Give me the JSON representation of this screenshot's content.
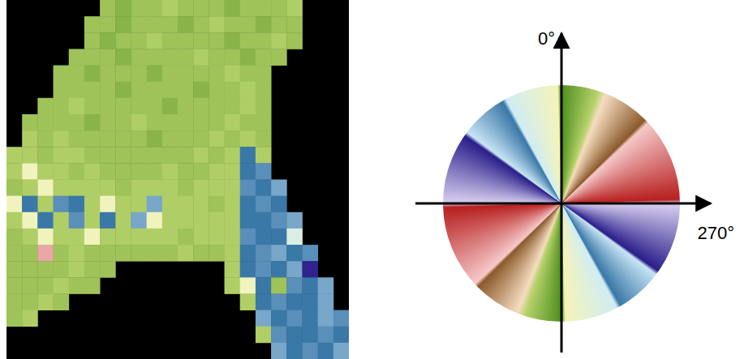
{
  "chart_data": {
    "type": "heatmap",
    "tick_labels": false,
    "cells": [
      [
        null,
        null,
        null,
        null,
        null,
        null,
        166,
        170,
        166,
        166,
        163,
        166,
        166,
        166,
        170,
        166,
        166,
        166,
        163,
        null,
        null,
        null
      ],
      [
        null,
        null,
        null,
        null,
        null,
        166,
        166,
        170,
        166,
        166,
        166,
        170,
        166,
        163,
        166,
        166,
        170,
        166,
        166,
        null,
        null,
        null
      ],
      [
        null,
        null,
        null,
        null,
        null,
        166,
        170,
        166,
        166,
        163,
        166,
        166,
        166,
        166,
        170,
        166,
        166,
        163,
        166,
        null,
        null,
        null
      ],
      [
        null,
        null,
        null,
        null,
        166,
        166,
        166,
        170,
        166,
        166,
        166,
        166,
        163,
        166,
        166,
        170,
        166,
        166,
        null,
        null,
        null,
        null
      ],
      [
        null,
        null,
        null,
        166,
        166,
        170,
        166,
        166,
        166,
        170,
        166,
        166,
        166,
        166,
        163,
        166,
        166,
        null,
        null,
        null,
        null,
        null
      ],
      [
        null,
        null,
        null,
        166,
        166,
        166,
        166,
        170,
        166,
        166,
        166,
        166,
        170,
        166,
        166,
        163,
        166,
        null,
        null,
        null,
        null,
        null
      ],
      [
        null,
        null,
        166,
        166,
        163,
        166,
        166,
        166,
        166,
        166,
        170,
        166,
        166,
        166,
        166,
        163,
        166,
        null,
        null,
        null,
        null,
        null
      ],
      [
        null,
        166,
        166,
        166,
        166,
        170,
        166,
        166,
        163,
        166,
        166,
        166,
        166,
        166,
        163,
        166,
        166,
        null,
        null,
        null,
        null,
        null
      ],
      [
        null,
        163,
        166,
        163,
        166,
        166,
        166,
        166,
        166,
        170,
        166,
        166,
        166,
        163,
        166,
        163,
        166,
        null,
        null,
        null,
        null,
        null
      ],
      [
        163,
        163,
        166,
        163,
        163,
        166,
        166,
        166,
        166,
        166,
        166,
        166,
        163,
        166,
        163,
        30,
        163,
        null,
        null,
        null,
        null,
        null
      ],
      [
        163,
        4,
        163,
        163,
        166,
        163,
        166,
        166,
        166,
        166,
        163,
        166,
        166,
        163,
        163,
        30,
        35,
        null,
        null,
        null,
        null,
        null
      ],
      [
        166,
        163,
        4,
        163,
        163,
        163,
        163,
        166,
        163,
        163,
        163,
        166,
        163,
        163,
        163,
        35,
        30,
        40,
        null,
        null,
        null,
        null
      ],
      [
        4,
        30,
        163,
        35,
        30,
        163,
        4,
        163,
        163,
        40,
        163,
        163,
        163,
        166,
        163,
        30,
        35,
        30,
        null,
        null,
        null,
        null
      ],
      [
        163,
        4,
        30,
        163,
        35,
        163,
        30,
        163,
        40,
        4,
        163,
        163,
        163,
        163,
        163,
        30,
        30,
        35,
        40,
        null,
        null,
        null
      ],
      [
        166,
        163,
        4,
        163,
        163,
        4,
        163,
        163,
        163,
        163,
        163,
        166,
        163,
        163,
        163,
        35,
        30,
        30,
        20,
        null,
        null,
        null
      ],
      [
        166,
        166,
        125,
        166,
        163,
        166,
        166,
        166,
        166,
        166,
        166,
        163,
        166,
        166,
        163,
        30,
        35,
        40,
        30,
        35,
        null,
        null
      ],
      [
        166,
        166,
        166,
        166,
        163,
        166,
        166,
        null,
        null,
        null,
        null,
        null,
        null,
        null,
        163,
        30,
        35,
        30,
        40,
        56,
        null,
        null
      ],
      [
        166,
        166,
        166,
        163,
        166,
        166,
        null,
        null,
        null,
        null,
        null,
        null,
        null,
        null,
        163,
        4,
        30,
        166,
        35,
        30,
        40,
        null
      ],
      [
        166,
        166,
        163,
        166,
        null,
        null,
        null,
        null,
        null,
        null,
        null,
        null,
        null,
        null,
        null,
        163,
        30,
        35,
        30,
        30,
        40,
        null
      ],
      [
        166,
        163,
        null,
        null,
        null,
        null,
        null,
        null,
        null,
        null,
        null,
        null,
        null,
        null,
        null,
        null,
        40,
        30,
        35,
        30,
        40,
        35
      ],
      [
        null,
        null,
        null,
        null,
        null,
        null,
        null,
        null,
        null,
        null,
        null,
        null,
        null,
        null,
        null,
        null,
        163,
        35,
        30,
        30,
        35,
        30
      ],
      [
        null,
        null,
        null,
        null,
        null,
        null,
        null,
        null,
        null,
        null,
        null,
        null,
        null,
        null,
        null,
        null,
        null,
        40,
        30,
        35,
        30,
        40
      ]
    ],
    "colorbar": {
      "range": [
        0,
        360
      ],
      "ticks": [
        {
          "value": 0,
          "label": "0°"
        },
        {
          "value": 270,
          "label": "270°"
        }
      ]
    }
  }
}
